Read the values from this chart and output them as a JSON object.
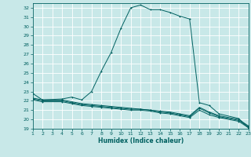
{
  "xlabel": "Humidex (Indice chaleur)",
  "bg_color": "#c8e8e8",
  "grid_color": "#ffffff",
  "line_color": "#006060",
  "xlim": [
    1,
    23
  ],
  "ylim": [
    19,
    32.5
  ],
  "xticks": [
    1,
    2,
    3,
    4,
    5,
    6,
    7,
    8,
    9,
    10,
    11,
    12,
    13,
    14,
    15,
    16,
    17,
    18,
    19,
    20,
    21,
    22,
    23
  ],
  "yticks": [
    19,
    20,
    21,
    22,
    23,
    24,
    25,
    26,
    27,
    28,
    29,
    30,
    31,
    32
  ],
  "line1_x": [
    1,
    2,
    4,
    5,
    6,
    7,
    8,
    9,
    10,
    11,
    12,
    13,
    14,
    15,
    16,
    17,
    18,
    19,
    20,
    22,
    23
  ],
  "line1_y": [
    22.8,
    22.1,
    22.2,
    22.4,
    22.1,
    23.0,
    25.2,
    27.2,
    29.8,
    32.0,
    32.3,
    31.8,
    31.8,
    31.5,
    31.1,
    30.8,
    21.8,
    21.5,
    20.6,
    20.1,
    19.1
  ],
  "line2_x": [
    1,
    2,
    4,
    5,
    6,
    7,
    8,
    9,
    10,
    11,
    12,
    13,
    14,
    15,
    16,
    17,
    18,
    19,
    20,
    22,
    23
  ],
  "line2_y": [
    22.1,
    21.9,
    21.9,
    21.7,
    21.5,
    21.4,
    21.3,
    21.2,
    21.1,
    21.0,
    21.0,
    20.9,
    20.7,
    20.6,
    20.4,
    20.2,
    21.0,
    20.5,
    20.2,
    19.8,
    19.1
  ],
  "line3_x": [
    1,
    2,
    4,
    5,
    6,
    7,
    8,
    9,
    10,
    11,
    12,
    13,
    14,
    15,
    16,
    17,
    18,
    19,
    20,
    22,
    23
  ],
  "line3_y": [
    22.2,
    22.0,
    22.0,
    21.8,
    21.6,
    21.5,
    21.4,
    21.3,
    21.2,
    21.1,
    21.1,
    21.0,
    20.8,
    20.7,
    20.5,
    20.3,
    21.2,
    20.7,
    20.3,
    19.9,
    19.2
  ],
  "line4_x": [
    1,
    2,
    4,
    5,
    6,
    7,
    8,
    9,
    10,
    11,
    12,
    13,
    14,
    15,
    16,
    17,
    18,
    19,
    20,
    22,
    23
  ],
  "line4_y": [
    22.3,
    22.1,
    22.1,
    21.9,
    21.7,
    21.6,
    21.5,
    21.4,
    21.3,
    21.2,
    21.1,
    21.0,
    20.9,
    20.8,
    20.6,
    20.4,
    21.3,
    20.8,
    20.4,
    20.0,
    19.3
  ]
}
